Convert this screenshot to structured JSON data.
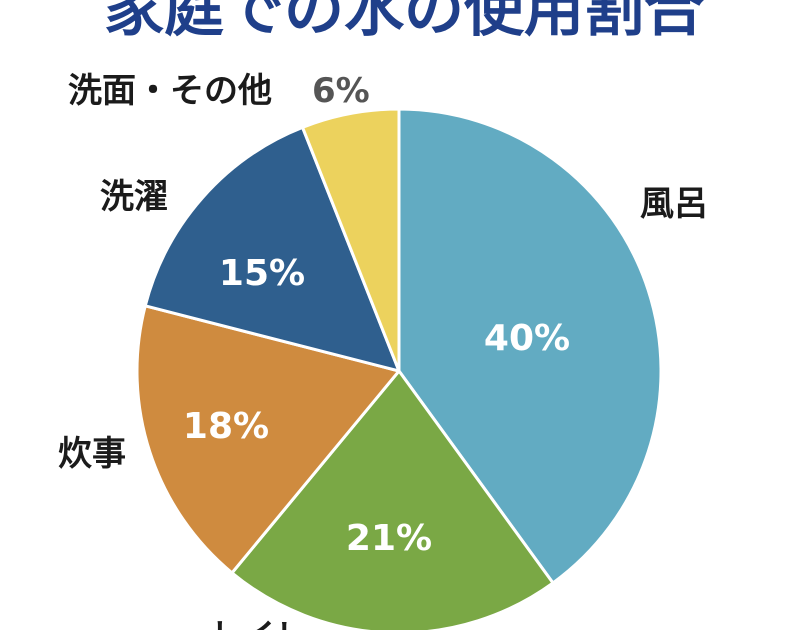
{
  "title": "家庭での水の使用割合",
  "chart_data": {
    "type": "pie",
    "title": "家庭での水の使用割合",
    "start": "12 o'clock, clockwise",
    "slices": [
      {
        "label": "風呂",
        "value": 40,
        "value_label": "40%",
        "color": "#62abc2"
      },
      {
        "label": "トイレ",
        "value": 21,
        "value_label": "21%",
        "color": "#7aa845"
      },
      {
        "label": "炊事",
        "value": 18,
        "value_label": "18%",
        "color": "#cf8b3f"
      },
      {
        "label": "洗濯",
        "value": 15,
        "value_label": "15%",
        "color": "#2f5f8e"
      },
      {
        "label": "洗面・その他",
        "value": 6,
        "value_label": "6%",
        "color": "#ecd25d"
      }
    ]
  }
}
